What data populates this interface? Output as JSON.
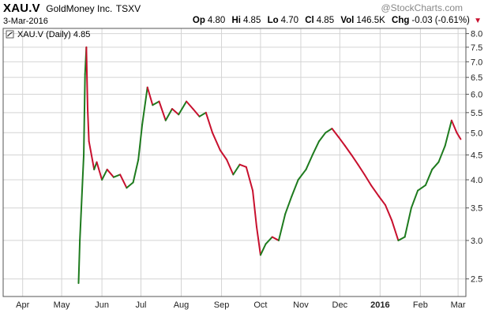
{
  "header": {
    "symbol": "XAU.V",
    "company": "GoldMoney Inc.",
    "exchange": "TSXV",
    "date": "3-Mar-2016",
    "brand": "@StockCharts.com",
    "quote": {
      "open_label": "Op",
      "open": "4.80",
      "high_label": "Hi",
      "high": "4.85",
      "low_label": "Lo",
      "low": "4.70",
      "close_label": "Cl",
      "close": "4.85",
      "vol_label": "Vol",
      "vol": "146.5K",
      "chg_label": "Chg",
      "chg": "-0.03 (-0.61%)"
    }
  },
  "colors": {
    "up": "#1e7b1e",
    "down": "#c8102e",
    "grid": "#d4d4d4",
    "frame": "#555555"
  },
  "chart_data": {
    "type": "line",
    "legend": "XAU.V (Daily) 4.85",
    "y_scale": "log",
    "ylim": [
      2.3,
      8.2
    ],
    "y_ticks": [
      2.5,
      3.0,
      3.5,
      4.0,
      4.5,
      5.0,
      5.5,
      6.0,
      6.5,
      7.0,
      7.5,
      8.0
    ],
    "y_tick_labels": [
      "2.5",
      "3.0",
      "3.5",
      "4.0",
      "4.5",
      "5.0",
      "5.5",
      "6.0",
      "6.5",
      "7.0",
      "7.5",
      "8.0"
    ],
    "x_tick_labels": [
      "Apr",
      "May",
      "Jun",
      "Jul",
      "Aug",
      "Sep",
      "Oct",
      "Nov",
      "Dec",
      "2016",
      "Feb",
      "Mar"
    ],
    "x_tick_dates": [
      "2015-04-01",
      "2015-05-01",
      "2015-06-01",
      "2015-07-01",
      "2015-08-01",
      "2015-09-01",
      "2015-10-01",
      "2015-11-01",
      "2015-12-01",
      "2016-01-01",
      "2016-02-01",
      "2016-03-01"
    ],
    "x_range": [
      "2015-03-17",
      "2016-03-07"
    ],
    "series": [
      {
        "name": "XAU.V",
        "x": [
          "2015-05-14",
          "2015-05-15",
          "2015-05-18",
          "2015-05-19",
          "2015-05-20",
          "2015-05-21",
          "2015-05-22",
          "2015-05-26",
          "2015-05-28",
          "2015-06-01",
          "2015-06-05",
          "2015-06-10",
          "2015-06-15",
          "2015-06-20",
          "2015-06-25",
          "2015-06-29",
          "2015-07-02",
          "2015-07-06",
          "2015-07-10",
          "2015-07-15",
          "2015-07-20",
          "2015-07-25",
          "2015-07-30",
          "2015-08-05",
          "2015-08-10",
          "2015-08-15",
          "2015-08-20",
          "2015-08-25",
          "2015-08-31",
          "2015-09-05",
          "2015-09-10",
          "2015-09-15",
          "2015-09-20",
          "2015-09-25",
          "2015-09-28",
          "2015-10-01",
          "2015-10-05",
          "2015-10-10",
          "2015-10-15",
          "2015-10-20",
          "2015-10-25",
          "2015-10-30",
          "2015-11-05",
          "2015-11-10",
          "2015-11-15",
          "2015-11-20",
          "2015-11-25",
          "2015-11-30",
          "2015-12-05",
          "2015-12-10",
          "2015-12-15",
          "2015-12-20",
          "2015-12-25",
          "2015-12-31",
          "2016-01-05",
          "2016-01-10",
          "2016-01-15",
          "2016-01-20",
          "2016-01-25",
          "2016-01-30",
          "2016-02-05",
          "2016-02-10",
          "2016-02-15",
          "2016-02-20",
          "2016-02-25",
          "2016-02-29",
          "2016-03-03"
        ],
        "y": [
          2.45,
          3.0,
          4.5,
          6.6,
          7.5,
          5.6,
          4.8,
          4.2,
          4.35,
          4.0,
          4.2,
          4.05,
          4.1,
          3.85,
          3.95,
          4.4,
          5.2,
          6.2,
          5.7,
          5.8,
          5.3,
          5.6,
          5.45,
          5.8,
          5.6,
          5.4,
          5.5,
          5.0,
          4.6,
          4.4,
          4.1,
          4.3,
          4.25,
          3.8,
          3.2,
          2.8,
          2.95,
          3.05,
          3.0,
          3.4,
          3.7,
          4.0,
          4.2,
          4.5,
          4.8,
          5.0,
          5.1,
          4.9,
          4.7,
          4.5,
          4.3,
          4.1,
          3.9,
          3.7,
          3.55,
          3.3,
          3.0,
          3.05,
          3.5,
          3.8,
          3.9,
          4.2,
          4.35,
          4.7,
          5.3,
          5.0,
          4.85
        ]
      }
    ]
  }
}
